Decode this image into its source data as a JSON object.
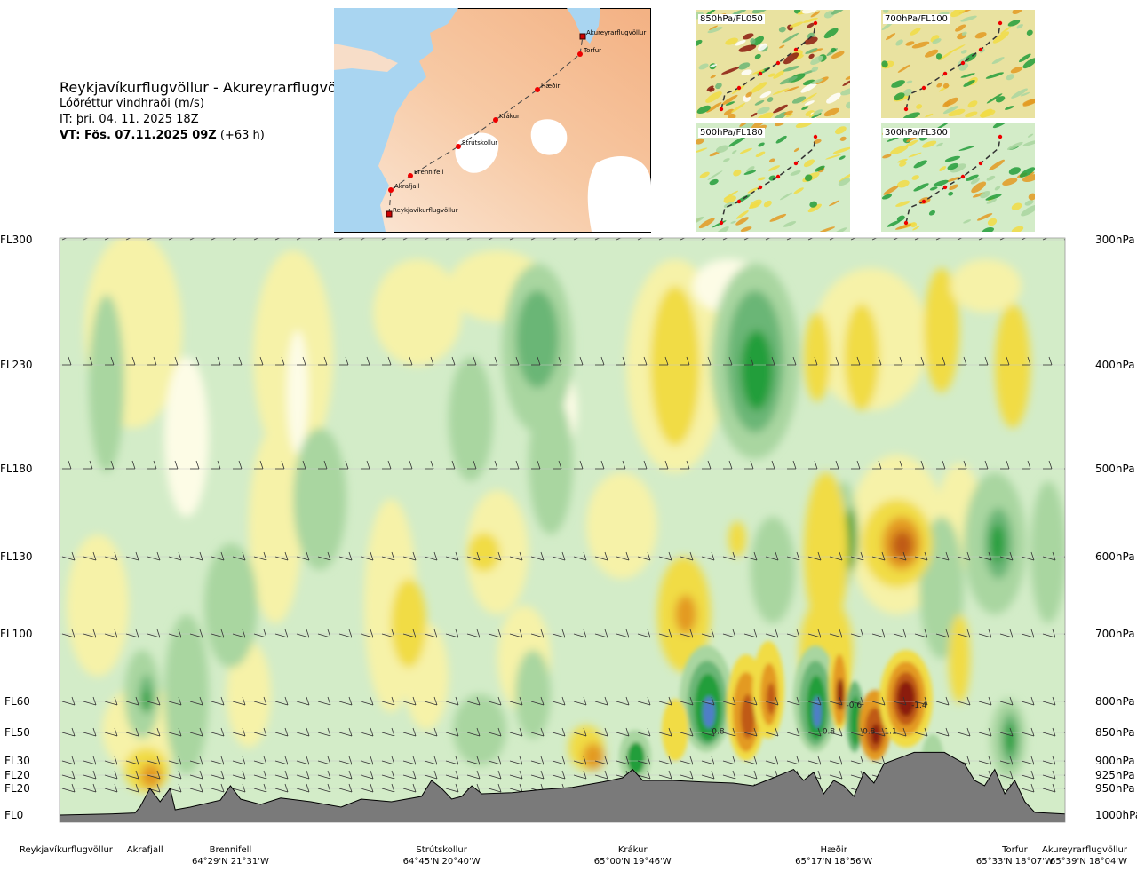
{
  "header": {
    "route": "Reykjavíkurflugvöllur - Akureyrarflugvöllur",
    "quantity": "Lóðréttur vindhraði (m/s)",
    "issue_time": "IT: þri. 04. 11. 2025 18Z",
    "valid_time": "VT: Fös. 07.11.2025 09Z",
    "lead": "(+63 h)"
  },
  "route_map": {
    "waypoints": [
      {
        "name": "Reykjavíkurflugvöllur",
        "type": "airport"
      },
      {
        "name": "Akrafjall",
        "type": "point"
      },
      {
        "name": "Brennifell",
        "type": "point"
      },
      {
        "name": "Strútskollur",
        "type": "point"
      },
      {
        "name": "Krákur",
        "type": "point"
      },
      {
        "name": "Hæðir",
        "type": "point"
      },
      {
        "name": "Torfur",
        "type": "point"
      },
      {
        "name": "Akureyrarflugvöllur",
        "type": "airport"
      }
    ]
  },
  "level_maps": [
    {
      "label": "850hPa/FL050"
    },
    {
      "label": "700hPa/FL100"
    },
    {
      "label": "500hPa/FL180"
    },
    {
      "label": "300hPa/FL300"
    }
  ],
  "chart_data": {
    "type": "heatmap",
    "title": "Lóðréttur vindhraði (m/s)",
    "x_axis": {
      "stations": [
        {
          "name": "Reykjavíkurflugvöllur",
          "coord": "",
          "dist": 0
        },
        {
          "name": "Akrafjall",
          "coord": "",
          "dist": 8.5
        },
        {
          "name": "Brennifell",
          "coord": "64°29'N 21°31'W",
          "dist": 17
        },
        {
          "name": "Strútskollur",
          "coord": "64°45'N 20°40'W",
          "dist": 38
        },
        {
          "name": "Krákur",
          "coord": "65°00'N 19°46'W",
          "dist": 57
        },
        {
          "name": "Hæðir",
          "coord": "65°17'N 18°56'W",
          "dist": 77
        },
        {
          "name": "Torfur",
          "coord": "65°33'N 18°07'W",
          "dist": 95
        },
        {
          "name": "Akureyrarflugvöllur",
          "coord": "65°39'N 18°04'W",
          "dist": 100
        }
      ]
    },
    "y_axis_left": [
      {
        "label": "FL300",
        "pressure": 300
      },
      {
        "label": "FL230",
        "pressure": 400
      },
      {
        "label": "FL180",
        "pressure": 500
      },
      {
        "label": "FL130",
        "pressure": 600
      },
      {
        "label": "FL100",
        "pressure": 700
      },
      {
        "label": "FL60",
        "pressure": 800
      },
      {
        "label": "FL50",
        "pressure": 850
      },
      {
        "label": "FL30",
        "pressure": 900
      },
      {
        "label": "FL20",
        "pressure": 925
      },
      {
        "label": "FL20",
        "pressure": 950
      },
      {
        "label": "FL0",
        "pressure": 1000
      }
    ],
    "y_axis_right": [
      "300hPa",
      "400hPa",
      "500hPa",
      "600hPa",
      "700hPa",
      "800hPa",
      "850hPa",
      "900hPa",
      "925hPa",
      "950hPa",
      "1000hPa"
    ],
    "terrain_profile": [
      [
        0,
        1000
      ],
      [
        5,
        998
      ],
      [
        7.5,
        996
      ],
      [
        8,
        985
      ],
      [
        9,
        950
      ],
      [
        10,
        975
      ],
      [
        11,
        950
      ],
      [
        11.5,
        990
      ],
      [
        13,
        985
      ],
      [
        16,
        972
      ],
      [
        17,
        945
      ],
      [
        18,
        970
      ],
      [
        20,
        980
      ],
      [
        22,
        968
      ],
      [
        25,
        975
      ],
      [
        28,
        985
      ],
      [
        30,
        970
      ],
      [
        33,
        975
      ],
      [
        36,
        965
      ],
      [
        37,
        935
      ],
      [
        38,
        950
      ],
      [
        39,
        970
      ],
      [
        40,
        965
      ],
      [
        41,
        945
      ],
      [
        42,
        960
      ],
      [
        45,
        958
      ],
      [
        48,
        952
      ],
      [
        51,
        948
      ],
      [
        54,
        938
      ],
      [
        56,
        930
      ],
      [
        57,
        915
      ],
      [
        58,
        935
      ],
      [
        61,
        935
      ],
      [
        64,
        938
      ],
      [
        67,
        940
      ],
      [
        69,
        945
      ],
      [
        71,
        930
      ],
      [
        73,
        915
      ],
      [
        74,
        935
      ],
      [
        75,
        920
      ],
      [
        76,
        960
      ],
      [
        77,
        935
      ],
      [
        78,
        945
      ],
      [
        79,
        965
      ],
      [
        80,
        920
      ],
      [
        81,
        940
      ],
      [
        82,
        905
      ],
      [
        85,
        885
      ],
      [
        88,
        885
      ],
      [
        90,
        905
      ],
      [
        91,
        935
      ],
      [
        92,
        945
      ],
      [
        93,
        915
      ],
      [
        94,
        960
      ],
      [
        95,
        935
      ],
      [
        96,
        975
      ],
      [
        97,
        995
      ],
      [
        100,
        998
      ]
    ],
    "value_labels": [
      {
        "dist": 79,
        "pressure": 810,
        "text": "-0.6"
      },
      {
        "dist": 85.5,
        "pressure": 810,
        "text": "-1.4"
      },
      {
        "dist": 65.5,
        "pressure": 852,
        "text": "0.8"
      },
      {
        "dist": 76.5,
        "pressure": 852,
        "text": "0.8"
      },
      {
        "dist": 80.5,
        "pressure": 852,
        "text": "0.8"
      },
      {
        "dist": 82.5,
        "pressure": 852,
        "text": "-1.1"
      }
    ],
    "palette": {
      "down_strong": "#8b1a0e",
      "down_mid": "#c05a12",
      "down_weak": "#e39a22",
      "down_light": "#f1dc44",
      "down_faint": "#f6f2a8",
      "neutral": "#fdfce6",
      "up_faint": "#d3ecc8",
      "up_light": "#a9d6a0",
      "up_weak": "#6bb676",
      "up_mid": "#239e3b",
      "up_strong": "#1b7d2c",
      "up_max": "#4f7ec8",
      "terrain": "#7a7a7a"
    }
  }
}
